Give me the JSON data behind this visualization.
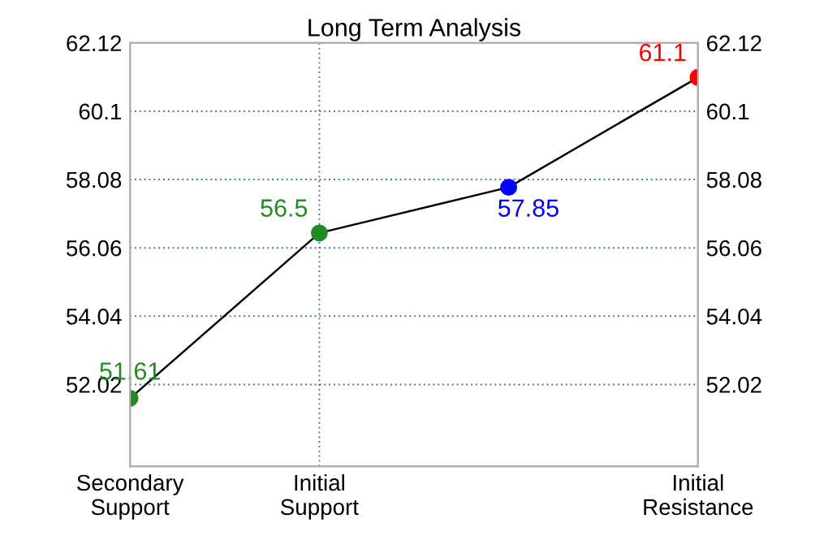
{
  "chart_data": {
    "type": "line",
    "title": "Long Term Analysis",
    "categories": [
      "Secondary\nSupport",
      "Initial\nSupport",
      null,
      "Initial\nResistance"
    ],
    "series": [
      {
        "color": "#000000",
        "colors": [
          "#228b22",
          "#228b22",
          "#0000ff",
          "#ff0000"
        ],
        "values": [
          51.61,
          56.5,
          57.85,
          61.1
        ]
      }
    ],
    "data_labels": true,
    "marker": "circle",
    "ylim": [
      49.6,
      62.12
    ],
    "yticks": [
      52.02,
      54.04,
      56.06,
      58.08,
      60.1,
      62.12
    ],
    "y2lim": [
      49.6,
      62.12
    ],
    "y2ticks": [
      52.02,
      54.04,
      56.06,
      58.08,
      60.1,
      62.12
    ],
    "grid": true
  }
}
